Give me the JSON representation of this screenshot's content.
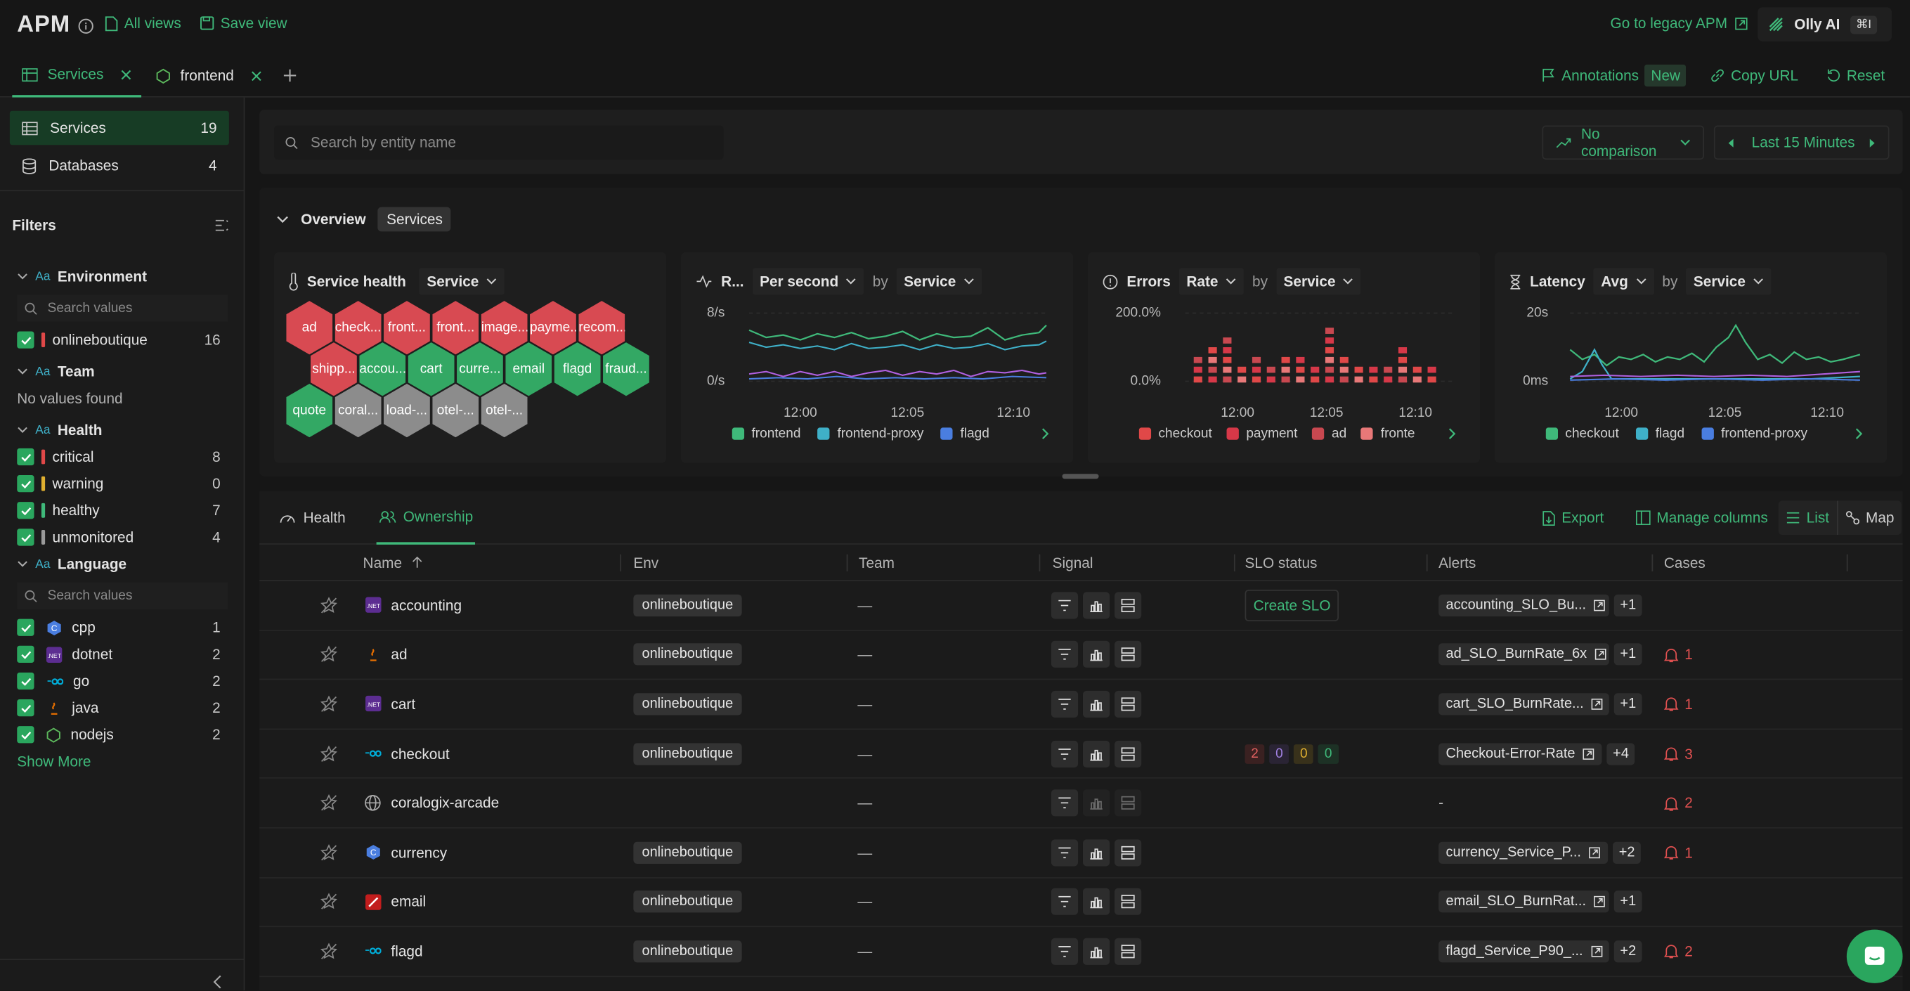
{
  "header": {
    "app_title": "APM",
    "all_views": "All views",
    "save_view": "Save view",
    "legacy": "Go to legacy APM",
    "olly": "Olly AI",
    "olly_shortcut": "⌘I"
  },
  "tabs": [
    {
      "label": "Services"
    },
    {
      "label": "frontend"
    }
  ],
  "actions": {
    "annotations": "Annotations",
    "annotations_badge": "New",
    "copy_url": "Copy URL",
    "reset": "Reset"
  },
  "sidebar": {
    "items": [
      {
        "label": "Services",
        "count": "19"
      },
      {
        "label": "Databases",
        "count": "4"
      }
    ],
    "filters_title": "Filters",
    "environment": {
      "title": "Environment",
      "search_placeholder": "Search values",
      "items": [
        {
          "label": "onlineboutique",
          "count": "16"
        }
      ]
    },
    "team": {
      "title": "Team",
      "empty": "No values found"
    },
    "health": {
      "title": "Health",
      "items": [
        {
          "label": "critical",
          "count": "8",
          "color": "#e04848"
        },
        {
          "label": "warning",
          "count": "0",
          "color": "#e0b030"
        },
        {
          "label": "healthy",
          "count": "7",
          "color": "#3fb97a"
        },
        {
          "label": "unmonitored",
          "count": "4",
          "color": "#9a9a9a"
        }
      ]
    },
    "language": {
      "title": "Language",
      "search_placeholder": "Search values",
      "items": [
        {
          "label": "cpp",
          "count": "1",
          "icon": "cpp-icon"
        },
        {
          "label": "dotnet",
          "count": "2",
          "icon": "dotnet-icon"
        },
        {
          "label": "go",
          "count": "2",
          "icon": "go-icon"
        },
        {
          "label": "java",
          "count": "2",
          "icon": "java-icon"
        },
        {
          "label": "nodejs",
          "count": "2",
          "icon": "nodejs-icon"
        }
      ]
    },
    "show_more": "Show More"
  },
  "toolbar": {
    "search_placeholder": "Search by entity name",
    "comparison": "No comparison",
    "time_range": "Last 15 Minutes"
  },
  "overview": {
    "title": "Overview",
    "tag": "Services"
  },
  "service_health": {
    "title": "Service health",
    "dropdown": "Service",
    "hexes": [
      {
        "label": "ad",
        "status": "critical"
      },
      {
        "label": "check...",
        "status": "critical"
      },
      {
        "label": "front...",
        "status": "critical"
      },
      {
        "label": "front...",
        "status": "critical"
      },
      {
        "label": "image...",
        "status": "critical"
      },
      {
        "label": "payme...",
        "status": "critical"
      },
      {
        "label": "recom...",
        "status": "critical"
      },
      {
        "label": "shipp...",
        "status": "critical"
      },
      {
        "label": "accou...",
        "status": "healthy"
      },
      {
        "label": "cart",
        "status": "healthy"
      },
      {
        "label": "curre...",
        "status": "healthy"
      },
      {
        "label": "email",
        "status": "healthy"
      },
      {
        "label": "flagd",
        "status": "healthy"
      },
      {
        "label": "fraud...",
        "status": "healthy"
      },
      {
        "label": "quote",
        "status": "healthy"
      },
      {
        "label": "coral...",
        "status": "unmonitored"
      },
      {
        "label": "load-...",
        "status": "unmonitored"
      },
      {
        "label": "otel-...",
        "status": "unmonitored"
      },
      {
        "label": "otel-...",
        "status": "unmonitored"
      }
    ]
  },
  "chart_data": [
    {
      "type": "line",
      "title": "R...",
      "mode": "Per second",
      "by": "by",
      "group": "Service",
      "ylim": [
        "0/s",
        "8/s"
      ],
      "x_ticks": [
        "12:00",
        "12:05",
        "12:10"
      ],
      "series": [
        {
          "name": "frontend",
          "color": "#3fb97a"
        },
        {
          "name": "frontend-proxy",
          "color": "#3fb0c8"
        },
        {
          "name": "flagd",
          "color": "#4a7ee0"
        }
      ]
    },
    {
      "type": "bar",
      "title": "Errors",
      "mode": "Rate",
      "by": "by",
      "group": "Service",
      "ylim": [
        "0.0%",
        "200.0%"
      ],
      "x_ticks": [
        "12:00",
        "12:05",
        "12:10"
      ],
      "series": [
        {
          "name": "checkout",
          "color": "#e04848"
        },
        {
          "name": "payment",
          "color": "#d63848"
        },
        {
          "name": "ad",
          "color": "#c84850"
        },
        {
          "name": "fronte",
          "color": "#e87878"
        }
      ]
    },
    {
      "type": "line",
      "title": "Latency",
      "mode": "Avg",
      "by": "by",
      "group": "Service",
      "ylim": [
        "0ms",
        "20s"
      ],
      "x_ticks": [
        "12:00",
        "12:05",
        "12:10"
      ],
      "series": [
        {
          "name": "checkout",
          "color": "#3fb97a"
        },
        {
          "name": "flagd",
          "color": "#3fb0c8"
        },
        {
          "name": "frontend-proxy",
          "color": "#4a7ee0"
        }
      ]
    }
  ],
  "table_tabs": {
    "health": "Health",
    "ownership": "Ownership",
    "export": "Export",
    "manage": "Manage columns",
    "list": "List",
    "map": "Map"
  },
  "table": {
    "columns": [
      "Name",
      "Env",
      "Team",
      "Signal",
      "SLO status",
      "Alerts",
      "Cases"
    ],
    "rows": [
      {
        "name": "accounting",
        "icon": "dotnet-icon",
        "env": "onlineboutique",
        "team": "—",
        "slo": "Create SLO",
        "alert": "accounting_SLO_Bu...",
        "more": "+1",
        "cases": ""
      },
      {
        "name": "ad",
        "icon": "java-icon",
        "env": "onlineboutique",
        "team": "—",
        "slo": "",
        "alert": "ad_SLO_BurnRate_6x",
        "more": "+1",
        "cases": "1"
      },
      {
        "name": "cart",
        "icon": "dotnet-icon",
        "env": "onlineboutique",
        "team": "—",
        "slo": "",
        "alert": "cart_SLO_BurnRate...",
        "more": "+1",
        "cases": "1"
      },
      {
        "name": "checkout",
        "icon": "go-icon",
        "env": "onlineboutique",
        "team": "—",
        "slo_counts": [
          "2",
          "0",
          "0",
          "0"
        ],
        "alert": "Checkout-Error-Rate",
        "more": "+4",
        "cases": "3"
      },
      {
        "name": "coralogix-arcade",
        "icon": "globe-icon",
        "env": "",
        "team": "—",
        "slo": "",
        "alert": "-",
        "more": "",
        "cases": "2"
      },
      {
        "name": "currency",
        "icon": "cpp-icon",
        "env": "onlineboutique",
        "team": "—",
        "slo": "",
        "alert": "currency_Service_P...",
        "more": "+2",
        "cases": "1"
      },
      {
        "name": "email",
        "icon": "ruby-icon",
        "env": "onlineboutique",
        "team": "—",
        "slo": "",
        "alert": "email_SLO_BurnRat...",
        "more": "+1",
        "cases": ""
      },
      {
        "name": "flagd",
        "icon": "go-icon",
        "env": "onlineboutique",
        "team": "—",
        "slo": "",
        "alert": "flagd_Service_P90_...",
        "more": "+2",
        "cases": "2"
      }
    ]
  }
}
